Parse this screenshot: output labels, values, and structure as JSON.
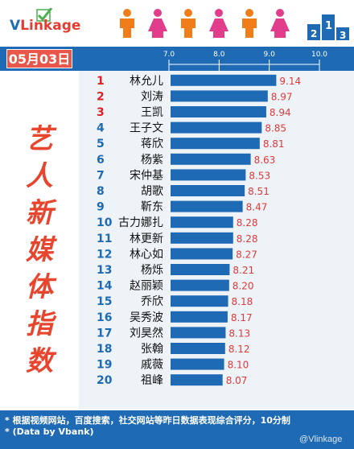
{
  "logo": {
    "text_v": "V",
    "text_link": "Link",
    "text_age": "age"
  },
  "date": "05月03日",
  "vertical_title": [
    "艺",
    "人",
    "新",
    "媒",
    "体",
    "指",
    "数"
  ],
  "colors": {
    "bar": "#1f6ab5",
    "value_text": "#e03a3a",
    "top_rank": "#e01f26",
    "rank": "#1f6ab5",
    "header": "#1f6ab5",
    "date_box": "#e8574a",
    "male_icon": "#f07d1a",
    "female_icon": "#e23c8c"
  },
  "people_icons": [
    "male-icon",
    "female-icon",
    "male-icon",
    "female-icon",
    "male-icon",
    "female-icon"
  ],
  "chart_data": {
    "type": "bar",
    "orientation": "horizontal",
    "xlim": [
      7.0,
      10.0
    ],
    "ticks": [
      7.0,
      8.0,
      9.0,
      10.0
    ],
    "tick_labels": [
      "7.0",
      "8.0",
      "9.0",
      "10.0"
    ],
    "ranks": [
      "1",
      "2",
      "3",
      "4",
      "5",
      "6",
      "7",
      "8",
      "9",
      "10",
      "11",
      "12",
      "13",
      "14",
      "15",
      "16",
      "17",
      "18",
      "19",
      "20"
    ],
    "categories": [
      "林允儿",
      "刘涛",
      "王凯",
      "王子文",
      "蒋欣",
      "杨紫",
      "宋仲基",
      "胡歌",
      "靳东",
      "古力娜扎",
      "林更新",
      "林心如",
      "杨烁",
      "赵丽颖",
      "乔欣",
      "吴秀波",
      "刘昊然",
      "张翰",
      "戚薇",
      "祖峰"
    ],
    "values": [
      9.14,
      8.97,
      8.94,
      8.85,
      8.81,
      8.63,
      8.53,
      8.51,
      8.47,
      8.28,
      8.28,
      8.27,
      8.21,
      8.2,
      8.18,
      8.17,
      8.13,
      8.12,
      8.1,
      8.07
    ],
    "value_labels": [
      "9.14",
      "8.97",
      "8.94",
      "8.85",
      "8.81",
      "8.63",
      "8.53",
      "8.51",
      "8.47",
      "8.28",
      "8.28",
      "8.27",
      "8.21",
      "8.20",
      "8.18",
      "8.17",
      "8.13",
      "8.12",
      "8.10",
      "8.07"
    ]
  },
  "footnotes": [
    "* 根据视频网站，百度搜索，社交网站等昨日数据表现综合评分，10分制",
    "* (Data by Vbank)"
  ],
  "watermark": "@Vlinkage"
}
